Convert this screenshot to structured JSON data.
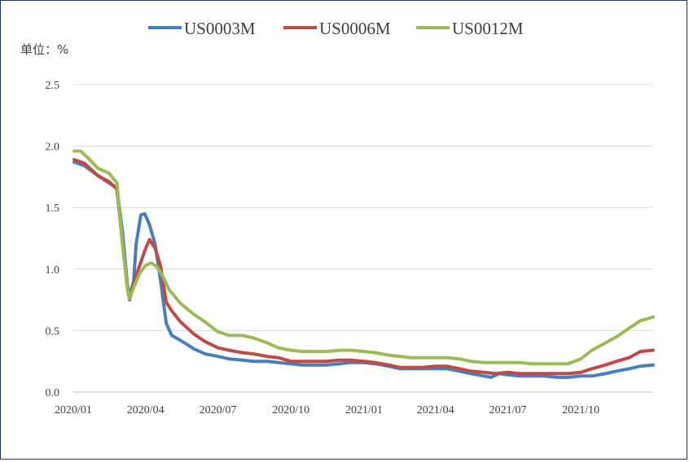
{
  "chart_data": {
    "type": "line",
    "title": "",
    "unit_label": "单位：%",
    "xlabel": "",
    "ylabel": "",
    "ylim": [
      0,
      2.5
    ],
    "yticks": [
      "0.0",
      "0.5",
      "1.0",
      "1.5",
      "2.0",
      "2.5"
    ],
    "xticks": [
      "2020/01",
      "2020/04",
      "2020/07",
      "2020/10",
      "2021/01",
      "2021/04",
      "2021/07",
      "2021/10"
    ],
    "grid": "horizontal",
    "legend_position": "top",
    "series": [
      {
        "name": "US0003M",
        "color": "#4a7ebb",
        "points": [
          [
            "2020-01-02",
            1.87
          ],
          [
            "2020-01-15",
            1.84
          ],
          [
            "2020-02-01",
            1.76
          ],
          [
            "2020-02-15",
            1.7
          ],
          [
            "2020-02-25",
            1.66
          ],
          [
            "2020-03-03",
            1.3
          ],
          [
            "2020-03-09",
            0.88
          ],
          [
            "2020-03-12",
            0.78
          ],
          [
            "2020-03-17",
            0.9
          ],
          [
            "2020-03-20",
            1.2
          ],
          [
            "2020-03-26",
            1.44
          ],
          [
            "2020-03-31",
            1.45
          ],
          [
            "2020-04-06",
            1.36
          ],
          [
            "2020-04-13",
            1.2
          ],
          [
            "2020-04-20",
            0.9
          ],
          [
            "2020-04-27",
            0.56
          ],
          [
            "2020-05-04",
            0.46
          ],
          [
            "2020-05-15",
            0.42
          ],
          [
            "2020-06-01",
            0.35
          ],
          [
            "2020-06-15",
            0.31
          ],
          [
            "2020-07-01",
            0.29
          ],
          [
            "2020-07-15",
            0.27
          ],
          [
            "2020-08-01",
            0.26
          ],
          [
            "2020-08-15",
            0.25
          ],
          [
            "2020-09-01",
            0.25
          ],
          [
            "2020-09-15",
            0.24
          ],
          [
            "2020-10-01",
            0.23
          ],
          [
            "2020-10-15",
            0.22
          ],
          [
            "2020-11-01",
            0.22
          ],
          [
            "2020-11-15",
            0.22
          ],
          [
            "2020-12-01",
            0.23
          ],
          [
            "2020-12-15",
            0.24
          ],
          [
            "2021-01-01",
            0.24
          ],
          [
            "2021-01-15",
            0.23
          ],
          [
            "2021-02-01",
            0.21
          ],
          [
            "2021-02-15",
            0.19
          ],
          [
            "2021-03-01",
            0.19
          ],
          [
            "2021-03-15",
            0.19
          ],
          [
            "2021-04-01",
            0.19
          ],
          [
            "2021-04-15",
            0.19
          ],
          [
            "2021-05-01",
            0.17
          ],
          [
            "2021-05-15",
            0.15
          ],
          [
            "2021-06-01",
            0.13
          ],
          [
            "2021-06-10",
            0.12
          ],
          [
            "2021-06-20",
            0.15
          ],
          [
            "2021-07-01",
            0.14
          ],
          [
            "2021-07-15",
            0.13
          ],
          [
            "2021-08-01",
            0.13
          ],
          [
            "2021-08-15",
            0.13
          ],
          [
            "2021-09-01",
            0.12
          ],
          [
            "2021-09-15",
            0.12
          ],
          [
            "2021-10-01",
            0.13
          ],
          [
            "2021-10-15",
            0.13
          ],
          [
            "2021-11-01",
            0.15
          ],
          [
            "2021-11-15",
            0.17
          ],
          [
            "2021-12-01",
            0.19
          ],
          [
            "2021-12-15",
            0.21
          ],
          [
            "2021-12-31",
            0.22
          ]
        ]
      },
      {
        "name": "US0006M",
        "color": "#be4b48",
        "points": [
          [
            "2020-01-02",
            1.89
          ],
          [
            "2020-01-15",
            1.86
          ],
          [
            "2020-02-01",
            1.76
          ],
          [
            "2020-02-15",
            1.71
          ],
          [
            "2020-02-25",
            1.65
          ],
          [
            "2020-03-03",
            1.2
          ],
          [
            "2020-03-09",
            0.85
          ],
          [
            "2020-03-12",
            0.75
          ],
          [
            "2020-03-17",
            0.88
          ],
          [
            "2020-03-23",
            1.0
          ],
          [
            "2020-03-31",
            1.15
          ],
          [
            "2020-04-06",
            1.24
          ],
          [
            "2020-04-13",
            1.17
          ],
          [
            "2020-04-20",
            1.02
          ],
          [
            "2020-04-27",
            0.73
          ],
          [
            "2020-05-04",
            0.66
          ],
          [
            "2020-05-15",
            0.57
          ],
          [
            "2020-06-01",
            0.47
          ],
          [
            "2020-06-15",
            0.41
          ],
          [
            "2020-07-01",
            0.36
          ],
          [
            "2020-07-15",
            0.34
          ],
          [
            "2020-08-01",
            0.32
          ],
          [
            "2020-08-15",
            0.31
          ],
          [
            "2020-09-01",
            0.29
          ],
          [
            "2020-09-15",
            0.28
          ],
          [
            "2020-10-01",
            0.25
          ],
          [
            "2020-10-15",
            0.25
          ],
          [
            "2020-11-01",
            0.25
          ],
          [
            "2020-11-15",
            0.25
          ],
          [
            "2020-12-01",
            0.26
          ],
          [
            "2020-12-15",
            0.26
          ],
          [
            "2021-01-01",
            0.25
          ],
          [
            "2021-01-15",
            0.24
          ],
          [
            "2021-02-01",
            0.22
          ],
          [
            "2021-02-15",
            0.2
          ],
          [
            "2021-03-01",
            0.2
          ],
          [
            "2021-03-15",
            0.2
          ],
          [
            "2021-04-01",
            0.21
          ],
          [
            "2021-04-15",
            0.21
          ],
          [
            "2021-05-01",
            0.19
          ],
          [
            "2021-05-15",
            0.17
          ],
          [
            "2021-06-01",
            0.16
          ],
          [
            "2021-06-15",
            0.15
          ],
          [
            "2021-07-01",
            0.16
          ],
          [
            "2021-07-15",
            0.15
          ],
          [
            "2021-08-01",
            0.15
          ],
          [
            "2021-08-15",
            0.15
          ],
          [
            "2021-09-01",
            0.15
          ],
          [
            "2021-09-15",
            0.15
          ],
          [
            "2021-10-01",
            0.16
          ],
          [
            "2021-10-15",
            0.19
          ],
          [
            "2021-11-01",
            0.22
          ],
          [
            "2021-11-15",
            0.25
          ],
          [
            "2021-12-01",
            0.28
          ],
          [
            "2021-12-15",
            0.33
          ],
          [
            "2021-12-31",
            0.34
          ]
        ]
      },
      {
        "name": "US0012M",
        "color": "#9bbb59",
        "points": [
          [
            "2020-01-02",
            1.96
          ],
          [
            "2020-01-10",
            1.96
          ],
          [
            "2020-01-20",
            1.9
          ],
          [
            "2020-02-01",
            1.82
          ],
          [
            "2020-02-15",
            1.78
          ],
          [
            "2020-02-25",
            1.7
          ],
          [
            "2020-03-03",
            1.2
          ],
          [
            "2020-03-09",
            0.85
          ],
          [
            "2020-03-12",
            0.76
          ],
          [
            "2020-03-17",
            0.85
          ],
          [
            "2020-03-25",
            0.97
          ],
          [
            "2020-04-01",
            1.03
          ],
          [
            "2020-04-08",
            1.05
          ],
          [
            "2020-04-15",
            1.02
          ],
          [
            "2020-04-22",
            0.95
          ],
          [
            "2020-05-01",
            0.83
          ],
          [
            "2020-05-15",
            0.72
          ],
          [
            "2020-06-01",
            0.63
          ],
          [
            "2020-06-15",
            0.57
          ],
          [
            "2020-07-01",
            0.49
          ],
          [
            "2020-07-15",
            0.46
          ],
          [
            "2020-08-01",
            0.46
          ],
          [
            "2020-08-15",
            0.44
          ],
          [
            "2020-09-01",
            0.4
          ],
          [
            "2020-09-15",
            0.36
          ],
          [
            "2020-10-01",
            0.34
          ],
          [
            "2020-10-15",
            0.33
          ],
          [
            "2020-11-01",
            0.33
          ],
          [
            "2020-11-15",
            0.33
          ],
          [
            "2020-12-01",
            0.34
          ],
          [
            "2020-12-15",
            0.34
          ],
          [
            "2021-01-01",
            0.33
          ],
          [
            "2021-01-15",
            0.32
          ],
          [
            "2021-02-01",
            0.3
          ],
          [
            "2021-02-15",
            0.29
          ],
          [
            "2021-03-01",
            0.28
          ],
          [
            "2021-03-15",
            0.28
          ],
          [
            "2021-04-01",
            0.28
          ],
          [
            "2021-04-15",
            0.28
          ],
          [
            "2021-05-01",
            0.27
          ],
          [
            "2021-05-15",
            0.25
          ],
          [
            "2021-06-01",
            0.24
          ],
          [
            "2021-06-15",
            0.24
          ],
          [
            "2021-07-01",
            0.24
          ],
          [
            "2021-07-15",
            0.24
          ],
          [
            "2021-08-01",
            0.23
          ],
          [
            "2021-08-15",
            0.23
          ],
          [
            "2021-09-01",
            0.23
          ],
          [
            "2021-09-15",
            0.23
          ],
          [
            "2021-10-01",
            0.27
          ],
          [
            "2021-10-15",
            0.34
          ],
          [
            "2021-11-01",
            0.4
          ],
          [
            "2021-11-15",
            0.45
          ],
          [
            "2021-12-01",
            0.52
          ],
          [
            "2021-12-15",
            0.58
          ],
          [
            "2021-12-31",
            0.61
          ]
        ]
      }
    ]
  }
}
